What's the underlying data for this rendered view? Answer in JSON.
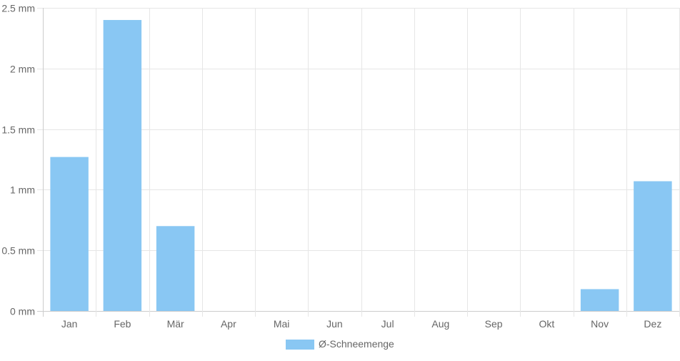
{
  "chart_data": {
    "type": "bar",
    "categories": [
      "Jan",
      "Feb",
      "Mär",
      "Apr",
      "Mai",
      "Jun",
      "Jul",
      "Aug",
      "Sep",
      "Okt",
      "Nov",
      "Dez"
    ],
    "series": [
      {
        "name": "Ø-Schneemenge",
        "values": [
          1.27,
          2.4,
          0.7,
          0,
          0,
          0,
          0,
          0,
          0,
          0,
          0.18,
          1.07
        ]
      }
    ],
    "ylim": [
      0,
      2.5
    ],
    "yticks": [
      0,
      0.5,
      1,
      1.5,
      2,
      2.5
    ],
    "ytick_labels": [
      "0 mm",
      "0.5 mm",
      "1 mm",
      "1.5 mm",
      "2 mm",
      "2.5 mm"
    ],
    "grid": true,
    "legend_position": "bottom",
    "colors": {
      "bar": "#89c7f3",
      "grid": "#e6e6e6",
      "text": "#666666"
    }
  }
}
